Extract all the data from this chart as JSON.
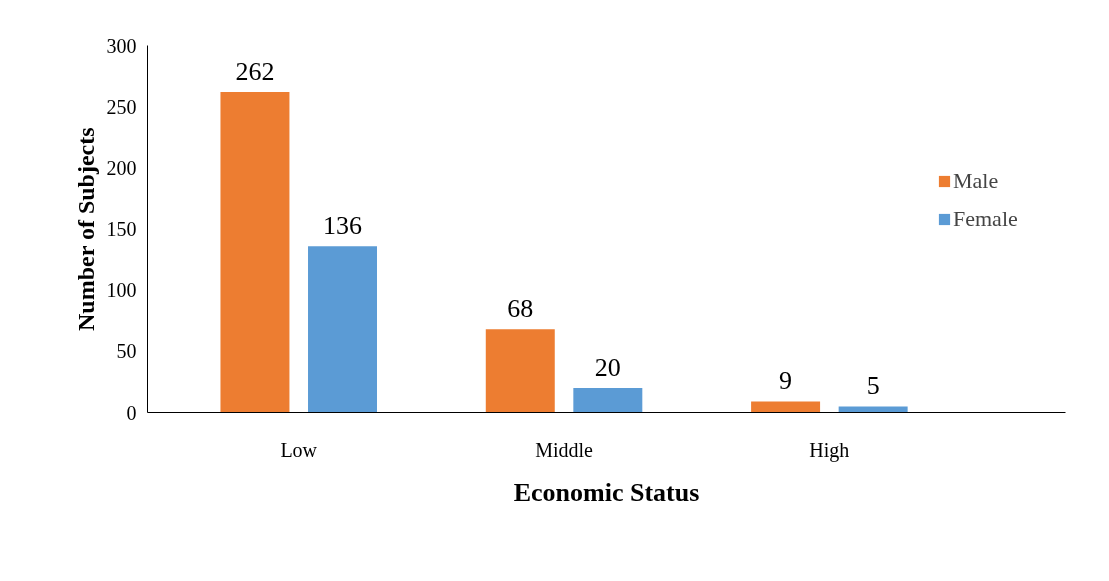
{
  "chart_data": {
    "type": "bar",
    "xlabel": "Economic Status",
    "ylabel": "Number of Subjects",
    "categories": [
      "Low",
      "Middle",
      "High"
    ],
    "series": [
      {
        "name": "Male",
        "color": "#ed7d31",
        "values": [
          262,
          68,
          9
        ]
      },
      {
        "name": "Female",
        "color": "#5b9bd5",
        "values": [
          136,
          20,
          5
        ]
      }
    ],
    "ylim": [
      0,
      300
    ],
    "yticks": [
      0,
      50,
      100,
      150,
      200,
      250,
      300
    ],
    "grid": false,
    "legend": "right",
    "data_labels": true
  }
}
